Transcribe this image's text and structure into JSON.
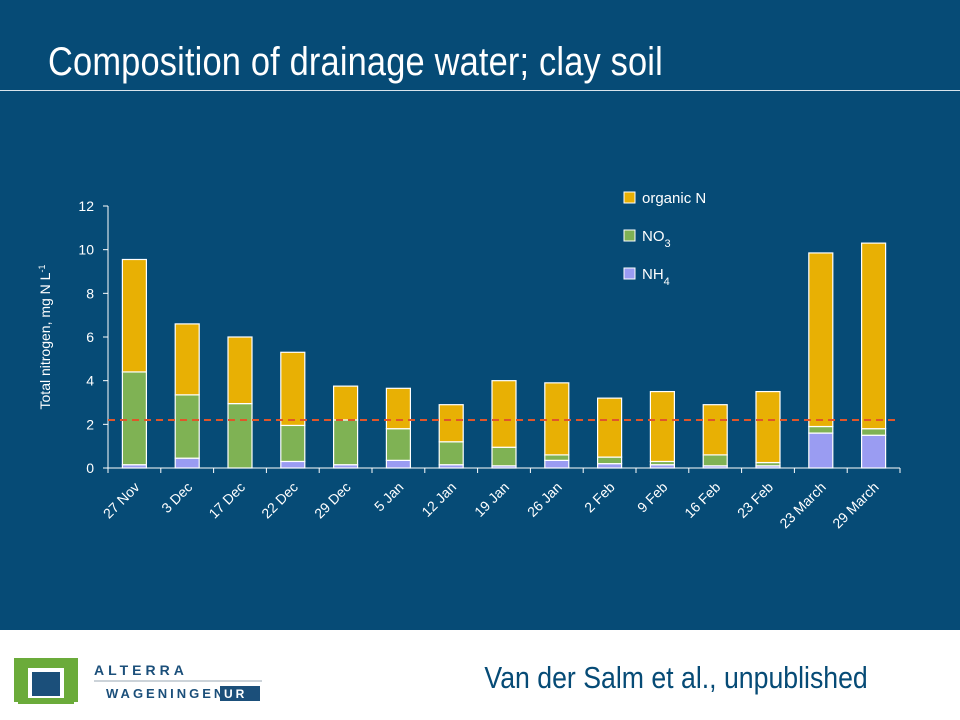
{
  "slide": {
    "title": "Composition of drainage water; clay soil",
    "citation": "Van der Salm et al., unpublished"
  },
  "logo": {
    "line1": "ALTERRA",
    "line2": "WAGENINGEN",
    "line2_suffix": "UR"
  },
  "colors": {
    "background": "#064b76",
    "organic_n": "#e8b004",
    "no3": "#7fb254",
    "nh4": "#9a9cf2",
    "reference_line": "#e0562a",
    "logo_green": "#6bab3a",
    "logo_blue": "#1b4f7a"
  },
  "chart_data": {
    "type": "bar",
    "stacked": true,
    "ylabel": "Total nitrogen, mg N L",
    "ylabel_sup": "-1",
    "ylim": [
      0,
      12
    ],
    "yticks": [
      0,
      2,
      4,
      6,
      8,
      10,
      12
    ],
    "categories": [
      "27 Nov",
      "3 Dec",
      "17 Dec",
      "22 Dec",
      "29 Dec",
      "5 Jan",
      "12 Jan",
      "19 Jan",
      "26 Jan",
      "2 Feb",
      "9 Feb",
      "16 Feb",
      "23 Feb",
      "23 March",
      "29 March"
    ],
    "series": [
      {
        "name": "NH4",
        "label_main": "NH",
        "label_sub": "4",
        "color": "#9a9cf2",
        "values": [
          0.15,
          0.45,
          0.0,
          0.3,
          0.15,
          0.35,
          0.15,
          0.1,
          0.35,
          0.2,
          0.15,
          0.1,
          0.1,
          1.6,
          1.5
        ]
      },
      {
        "name": "NO3",
        "label_main": "NO",
        "label_sub": "3",
        "color": "#7fb254",
        "values": [
          4.25,
          2.9,
          2.95,
          1.65,
          2.05,
          1.45,
          1.05,
          0.85,
          0.25,
          0.3,
          0.15,
          0.5,
          0.15,
          0.3,
          0.3
        ]
      },
      {
        "name": "organic N",
        "label_main": "organic N",
        "label_sub": "",
        "color": "#e8b004",
        "values": [
          5.15,
          3.25,
          3.05,
          3.35,
          1.55,
          1.85,
          1.7,
          3.05,
          3.3,
          2.7,
          3.2,
          2.3,
          3.25,
          7.95,
          8.5
        ]
      }
    ],
    "reference_line": {
      "y": 2.2,
      "style": "dashed",
      "color": "#e0562a"
    },
    "legend_placement": "top-right",
    "grid": false
  }
}
